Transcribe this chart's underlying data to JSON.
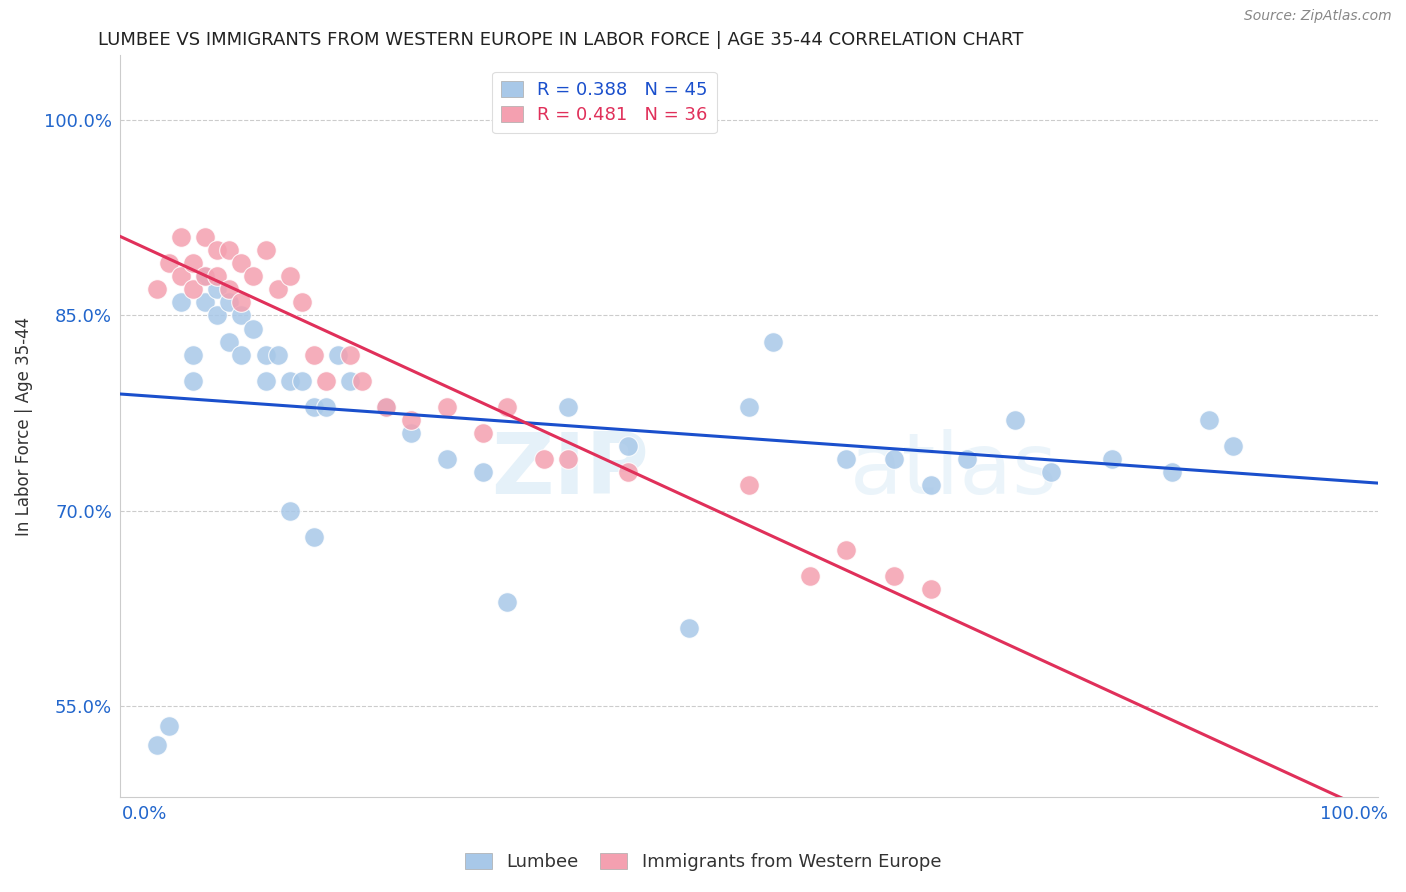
{
  "title": "LUMBEE VS IMMIGRANTS FROM WESTERN EUROPE IN LABOR FORCE | AGE 35-44 CORRELATION CHART",
  "source_text": "Source: ZipAtlas.com",
  "xlabel": "",
  "ylabel": "In Labor Force | Age 35-44",
  "xlim": [
    -0.02,
    1.02
  ],
  "ylim": [
    0.48,
    1.05
  ],
  "yticks": [
    0.55,
    0.7,
    0.85,
    1.0
  ],
  "ytick_labels": [
    "55.0%",
    "70.0%",
    "85.0%",
    "100.0%"
  ],
  "xticks": [
    0.0,
    1.0
  ],
  "xtick_labels": [
    "0.0%",
    "100.0%"
  ],
  "legend_r1": "R = 0.388",
  "legend_n1": "N = 45",
  "legend_r2": "R = 0.481",
  "legend_n2": "N = 36",
  "color_blue": "#a8c8e8",
  "color_pink": "#f4a0b0",
  "color_line_blue": "#1a4fcc",
  "color_line_pink": "#e0305a",
  "watermark": "ZIPatlas",
  "background_color": "#ffffff",
  "lumbee_x": [
    0.01,
    0.02,
    0.03,
    0.04,
    0.04,
    0.05,
    0.05,
    0.06,
    0.06,
    0.07,
    0.07,
    0.08,
    0.08,
    0.09,
    0.1,
    0.1,
    0.11,
    0.12,
    0.13,
    0.14,
    0.15,
    0.16,
    0.17,
    0.2,
    0.22,
    0.25,
    0.28,
    0.35,
    0.4,
    0.5,
    0.52,
    0.58,
    0.62,
    0.65,
    0.68,
    0.72,
    0.75,
    0.8,
    0.85,
    0.88,
    0.9,
    0.12,
    0.14,
    0.3,
    0.45
  ],
  "lumbee_y": [
    0.52,
    0.535,
    0.86,
    0.82,
    0.8,
    0.88,
    0.86,
    0.87,
    0.85,
    0.86,
    0.83,
    0.85,
    0.82,
    0.84,
    0.82,
    0.8,
    0.82,
    0.8,
    0.8,
    0.78,
    0.78,
    0.82,
    0.8,
    0.78,
    0.76,
    0.74,
    0.73,
    0.78,
    0.75,
    0.78,
    0.83,
    0.74,
    0.74,
    0.72,
    0.74,
    0.77,
    0.73,
    0.74,
    0.73,
    0.77,
    0.75,
    0.7,
    0.68,
    0.63,
    0.61
  ],
  "immig_x": [
    0.01,
    0.02,
    0.03,
    0.03,
    0.04,
    0.04,
    0.05,
    0.05,
    0.06,
    0.06,
    0.07,
    0.07,
    0.08,
    0.08,
    0.09,
    0.1,
    0.11,
    0.12,
    0.13,
    0.14,
    0.15,
    0.17,
    0.18,
    0.2,
    0.22,
    0.25,
    0.28,
    0.3,
    0.33,
    0.35,
    0.4,
    0.5,
    0.55,
    0.58,
    0.62,
    0.65
  ],
  "immig_y": [
    0.87,
    0.89,
    0.91,
    0.88,
    0.89,
    0.87,
    0.91,
    0.88,
    0.9,
    0.88,
    0.9,
    0.87,
    0.89,
    0.86,
    0.88,
    0.9,
    0.87,
    0.88,
    0.86,
    0.82,
    0.8,
    0.82,
    0.8,
    0.78,
    0.77,
    0.78,
    0.76,
    0.78,
    0.74,
    0.74,
    0.73,
    0.72,
    0.65,
    0.67,
    0.65,
    0.64
  ]
}
